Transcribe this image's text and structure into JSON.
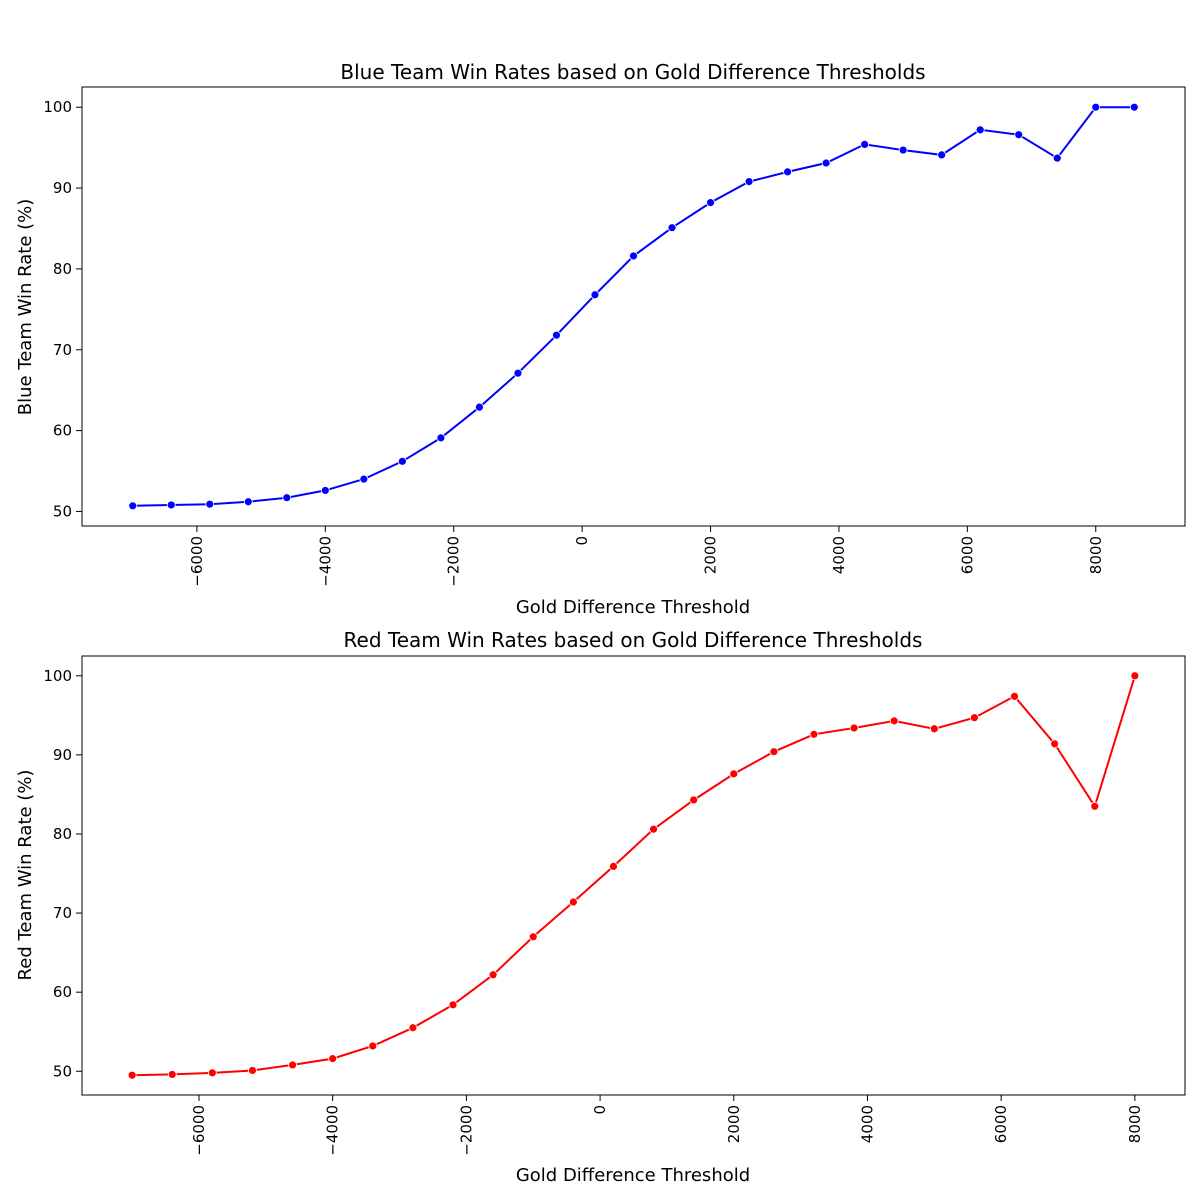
{
  "chart_data": [
    {
      "type": "line",
      "title": "Blue Team Win Rates based on Gold Difference Thresholds",
      "xlabel": "Gold Difference Threshold",
      "ylabel": "Blue Team Win Rate (%)",
      "xlim": [
        -7790,
        9390
      ],
      "ylim": [
        48.2,
        102.5
      ],
      "xticks": [
        -6000,
        -4000,
        -2000,
        0,
        2000,
        4000,
        6000,
        8000
      ],
      "xtick_labels": [
        "−6000",
        "−4000",
        "−2000",
        "0",
        "2000",
        "4000",
        "6000",
        "8000"
      ],
      "yticks": [
        50,
        60,
        70,
        80,
        90,
        100
      ],
      "ytick_labels": [
        "50",
        "60",
        "70",
        "80",
        "90",
        "100"
      ],
      "grid": false,
      "color": "#0000ff",
      "markers": true,
      "x": [
        -7000,
        -6400,
        -5800,
        -5200,
        -4600,
        -4000,
        -3400,
        -2800,
        -2200,
        -1600,
        -1000,
        -400,
        200,
        800,
        1400,
        2000,
        2600,
        3200,
        3800,
        4400,
        5000,
        5600,
        6200,
        6800,
        7400,
        8000,
        8600
      ],
      "y": [
        50.7,
        50.8,
        50.9,
        51.2,
        51.7,
        52.6,
        54.0,
        56.2,
        59.1,
        62.9,
        67.1,
        71.8,
        76.8,
        81.6,
        85.1,
        88.2,
        90.8,
        92.0,
        93.1,
        95.4,
        94.7,
        94.1,
        97.2,
        96.6,
        93.7,
        100.0,
        100.0
      ]
    },
    {
      "type": "line",
      "title": "Red Team Win Rates based on Gold Difference Thresholds",
      "xlabel": "Gold Difference Threshold",
      "ylabel": "Red Team Win Rate (%)",
      "xlim": [
        -7750,
        8750
      ],
      "ylim": [
        47.0,
        102.5
      ],
      "xticks": [
        -6000,
        -4000,
        -2000,
        0,
        2000,
        4000,
        6000,
        8000
      ],
      "xtick_labels": [
        "−6000",
        "−4000",
        "−2000",
        "0",
        "2000",
        "4000",
        "6000",
        "8000"
      ],
      "yticks": [
        50,
        60,
        70,
        80,
        90,
        100
      ],
      "ytick_labels": [
        "50",
        "60",
        "70",
        "80",
        "90",
        "100"
      ],
      "grid": false,
      "color": "#ff0000",
      "markers": true,
      "x": [
        -7000,
        -6400,
        -5800,
        -5200,
        -4600,
        -4000,
        -3400,
        -2800,
        -2200,
        -1600,
        -1000,
        -400,
        200,
        800,
        1400,
        2000,
        2600,
        3200,
        3800,
        4400,
        5000,
        5600,
        6200,
        6800,
        7400,
        8000
      ],
      "y": [
        49.5,
        49.6,
        49.8,
        50.1,
        50.8,
        51.6,
        53.2,
        55.5,
        58.4,
        62.2,
        67.0,
        71.4,
        75.9,
        80.6,
        84.3,
        87.6,
        90.4,
        92.6,
        93.4,
        94.3,
        93.3,
        94.7,
        97.4,
        91.4,
        83.5,
        100.0
      ]
    }
  ]
}
